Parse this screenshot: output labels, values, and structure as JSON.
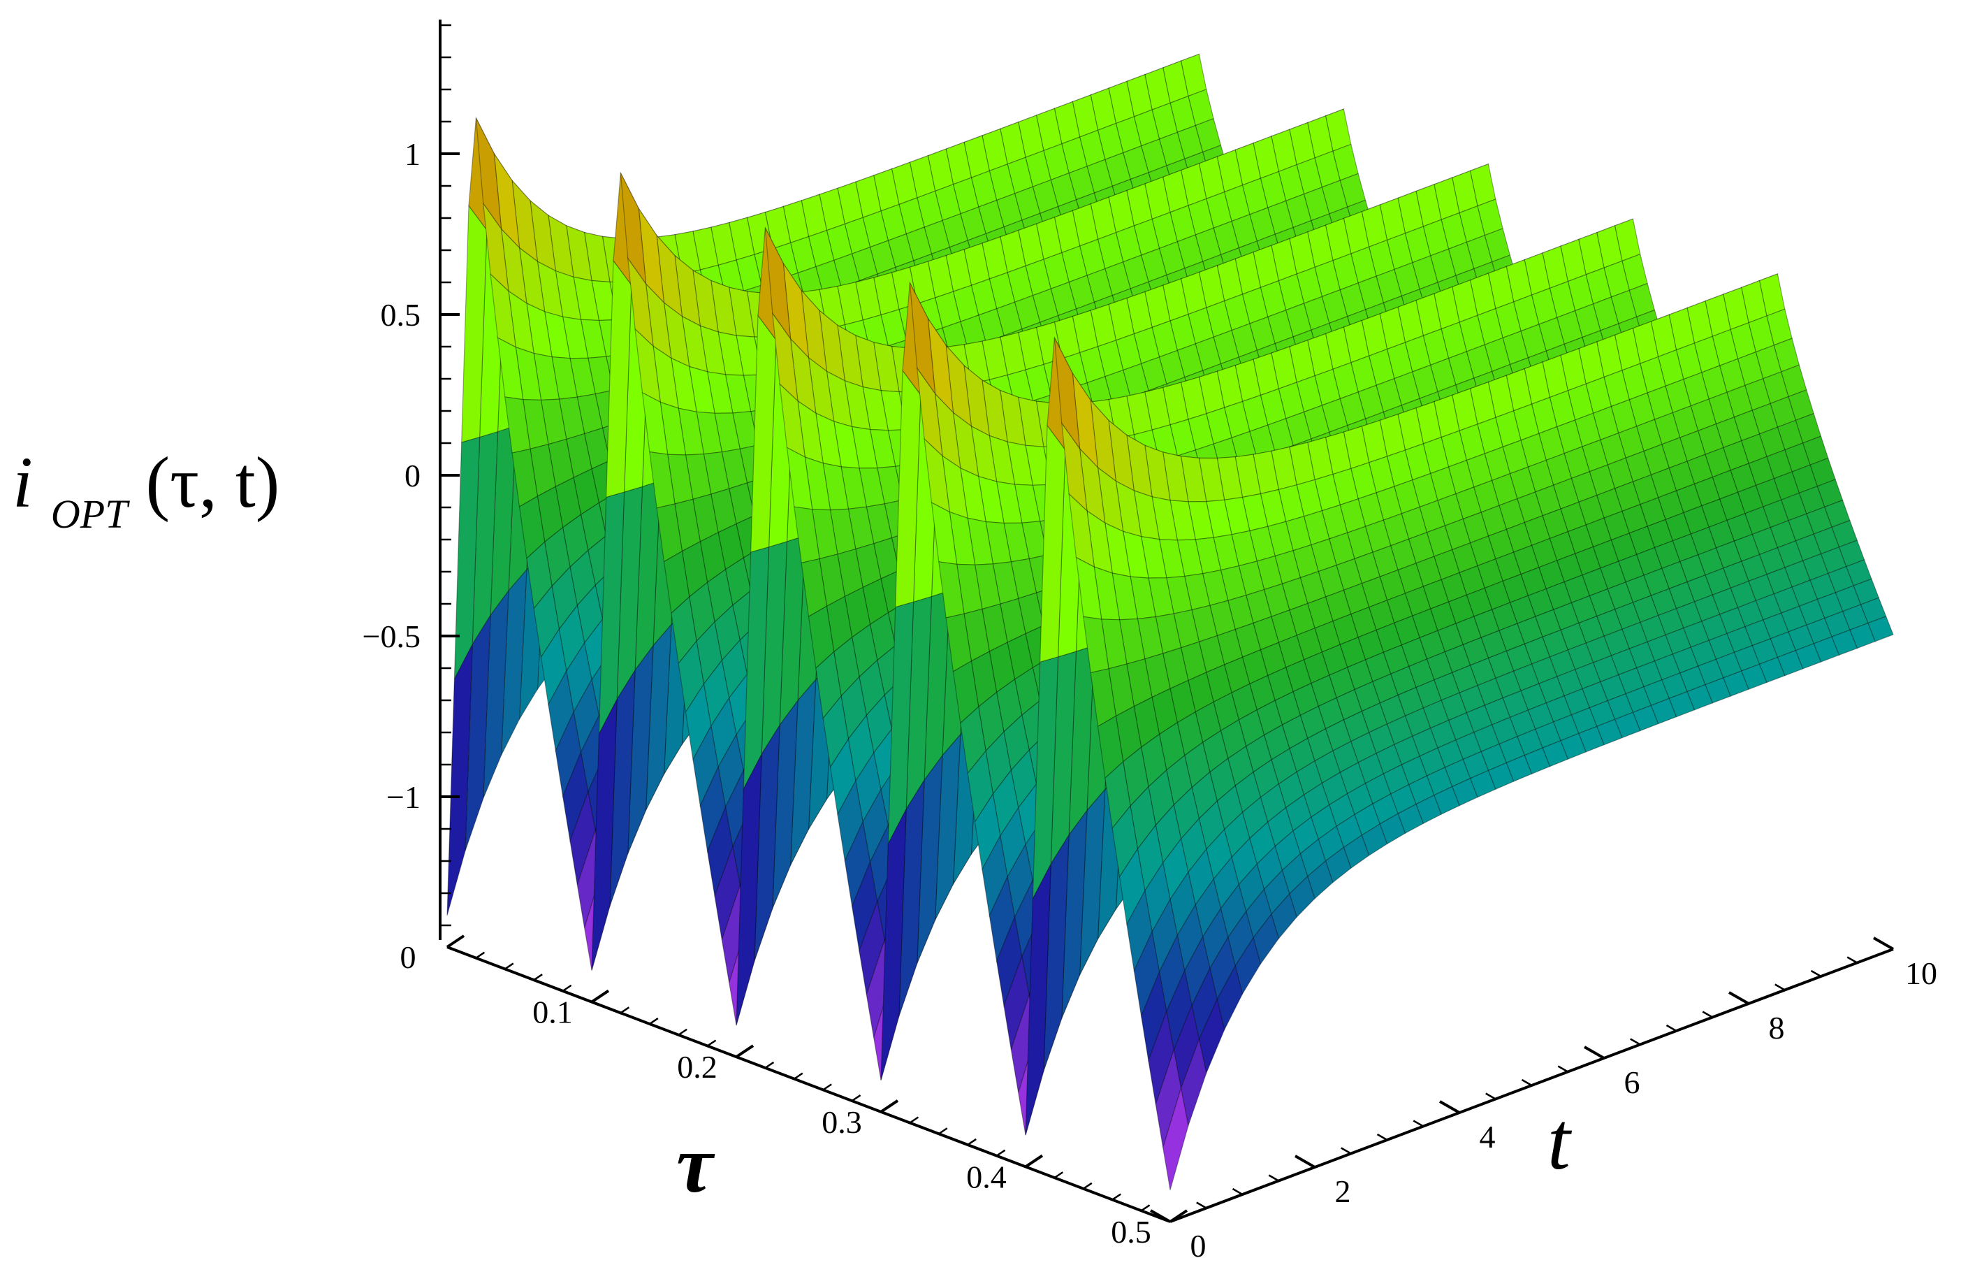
{
  "chart_data": {
    "type": "surface",
    "z_axis": {
      "label_main": "i",
      "label_sub": "OPT",
      "label_args": "(τ, t)",
      "ticks": [
        -1,
        -0.5,
        0,
        0.5,
        1
      ],
      "tick_labels": [
        "−1",
        "−0.5",
        "0",
        "0.5",
        "1"
      ],
      "range": [
        -1.45,
        1.45
      ]
    },
    "tau_axis": {
      "label": "τ",
      "ticks": [
        0,
        0.1,
        0.2,
        0.3,
        0.4,
        0.5
      ],
      "tick_labels": [
        "0",
        "0.1",
        "0.2",
        "0.3",
        "0.4",
        "0.5"
      ],
      "range": [
        0,
        0.5
      ]
    },
    "t_axis": {
      "label": "t",
      "ticks": [
        0,
        2,
        4,
        6,
        8,
        10
      ],
      "tick_labels": [
        "0",
        "2",
        "4",
        "6",
        "8",
        "10"
      ],
      "range": [
        0,
        10
      ]
    },
    "surface": {
      "description_of_shape": "sawtooth in tau (period 0.1) decaying to a periodic steady state in t",
      "tau_period": 0.1,
      "peak_value": 1.3,
      "trough_value": -1.38,
      "steady_state_max": 0.55,
      "steady_state_min": -0.5,
      "decay_constant_t": 1.1
    },
    "colormap": [
      "#d33cff",
      "#1a1aa0",
      "#009a9a",
      "#22b022",
      "#7cff00",
      "#d0c000",
      "#b02000"
    ],
    "grid": true,
    "legend": "none"
  }
}
